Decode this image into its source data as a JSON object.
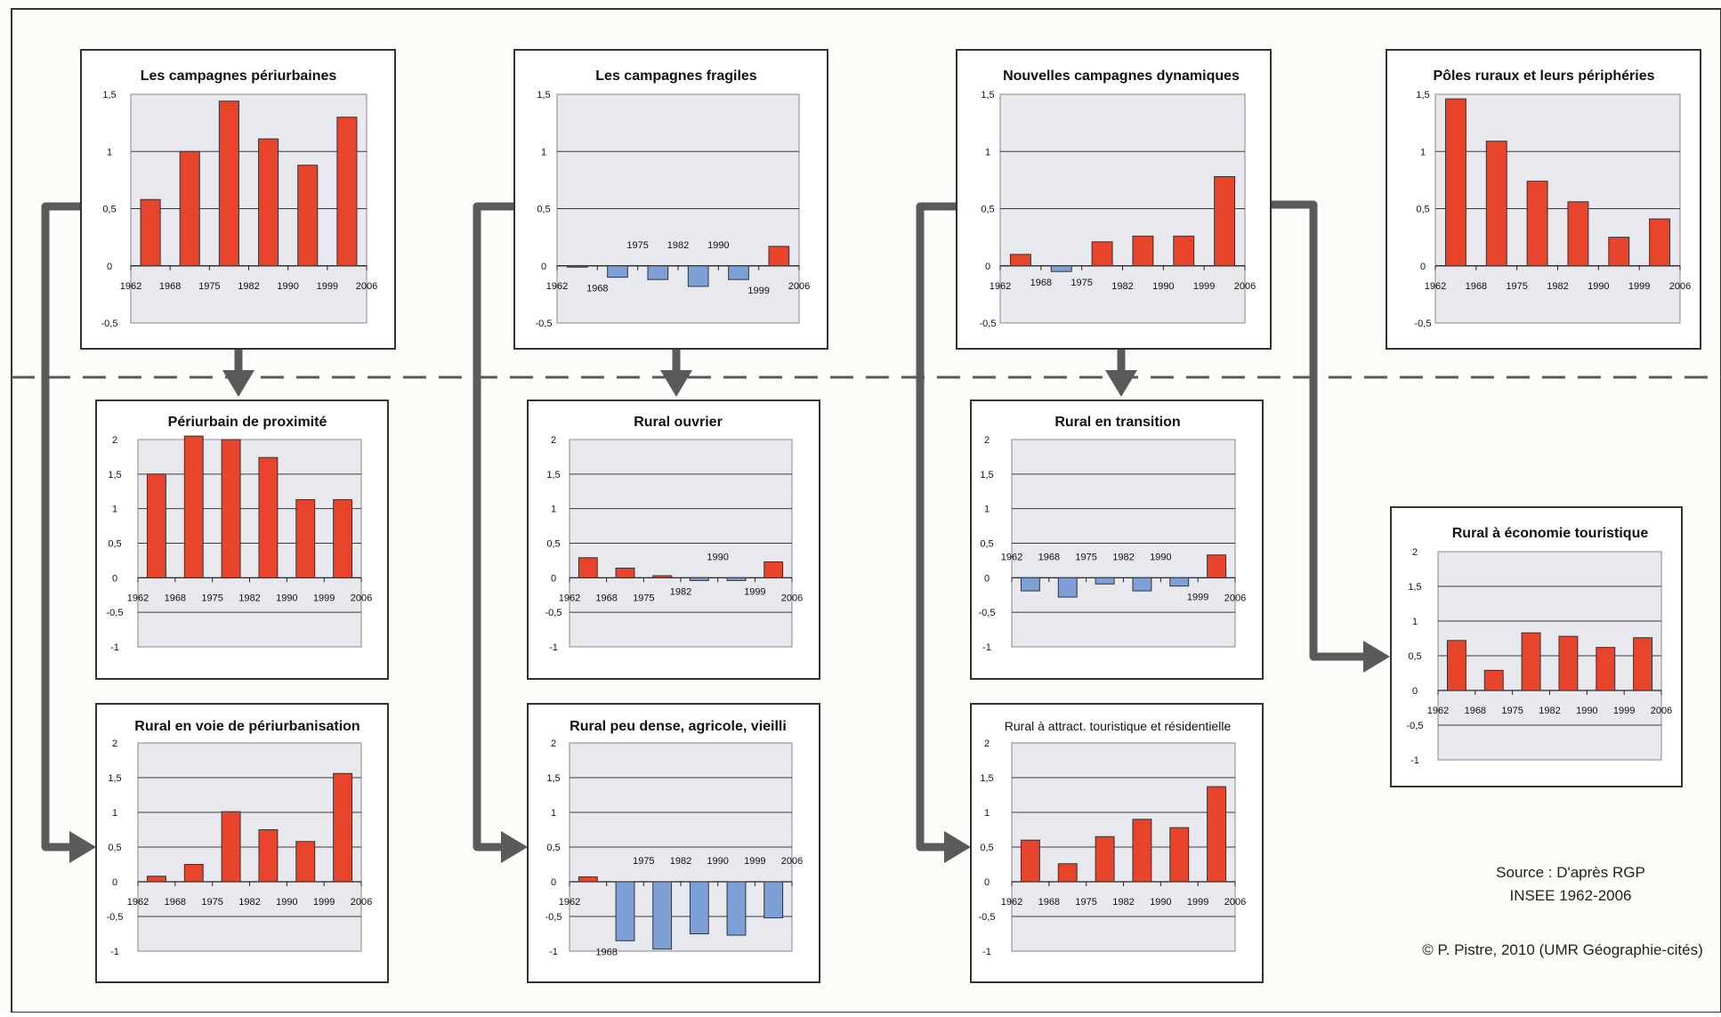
{
  "colors": {
    "positive": "#e8442c",
    "negative": "#7f9fd7",
    "panel_bg": "#e8e9ee",
    "frame": "#333333",
    "arrow": "#5a5a5a"
  },
  "years": [
    "1962",
    "1968",
    "1975",
    "1982",
    "1990",
    "1999",
    "2006"
  ],
  "chart_data": [
    {
      "type": "bar",
      "title": "Les campagnes périurbaines",
      "categories": [
        "1962-1968",
        "1968-1975",
        "1975-1982",
        "1982-1990",
        "1990-1999",
        "1999-2006"
      ],
      "values": [
        0.58,
        1.0,
        1.44,
        1.11,
        0.88,
        1.3
      ],
      "ylim": [
        -0.5,
        1.5
      ],
      "yticks": [
        "1,5",
        "1",
        "0,5",
        "0",
        "-0,5"
      ]
    },
    {
      "type": "bar",
      "title": "Les campagnes fragiles",
      "categories": [
        "1962-1968",
        "1968-1975",
        "1975-1982",
        "1982-1990",
        "1990-1999",
        "1999-2006"
      ],
      "values": [
        0.0,
        -0.1,
        -0.12,
        -0.18,
        -0.12,
        0.17
      ],
      "ylim": [
        -0.5,
        1.5
      ],
      "yticks": [
        "1,5",
        "1",
        "0,5",
        "0",
        "-0,5"
      ]
    },
    {
      "type": "bar",
      "title": "Nouvelles campagnes dynamiques",
      "categories": [
        "1962-1968",
        "1968-1975",
        "1975-1982",
        "1982-1990",
        "1990-1999",
        "1999-2006"
      ],
      "values": [
        0.1,
        -0.05,
        0.21,
        0.26,
        0.26,
        0.78
      ],
      "ylim": [
        -0.5,
        1.5
      ],
      "yticks": [
        "1,5",
        "1",
        "0,5",
        "0",
        "-0,5"
      ]
    },
    {
      "type": "bar",
      "title": "Pôles ruraux et leurs périphéries",
      "categories": [
        "1962-1968",
        "1968-1975",
        "1975-1982",
        "1982-1990",
        "1990-1999",
        "1999-2006"
      ],
      "values": [
        1.46,
        1.09,
        0.74,
        0.56,
        0.25,
        0.41
      ],
      "ylim": [
        -0.5,
        1.5
      ],
      "yticks": [
        "1,5",
        "1",
        "0,5",
        "0",
        "-0,5"
      ]
    },
    {
      "type": "bar",
      "title": "Périurbain de proximité",
      "categories": [
        "1962-1968",
        "1968-1975",
        "1975-1982",
        "1982-1990",
        "1990-1999",
        "1999-2006"
      ],
      "values": [
        1.5,
        2.05,
        2.0,
        1.74,
        1.13,
        1.13
      ],
      "ylim": [
        -1,
        2
      ],
      "yticks": [
        "2",
        "1,5",
        "1",
        "0,5",
        "0",
        "-0,5",
        "-1"
      ]
    },
    {
      "type": "bar",
      "title": "Rural ouvrier",
      "categories": [
        "1962-1968",
        "1968-1975",
        "1975-1982",
        "1982-1990",
        "1990-1999",
        "1999-2006"
      ],
      "values": [
        0.29,
        0.14,
        0.03,
        -0.04,
        -0.04,
        0.23
      ],
      "ylim": [
        -1,
        2
      ],
      "yticks": [
        "2",
        "1,5",
        "1",
        "0,5",
        "0",
        "-0,5",
        "-1"
      ]
    },
    {
      "type": "bar",
      "title": "Rural en transition",
      "categories": [
        "1962-1968",
        "1968-1975",
        "1975-1982",
        "1982-1990",
        "1990-1999",
        "1999-2006"
      ],
      "values": [
        -0.19,
        -0.28,
        -0.09,
        -0.19,
        -0.12,
        0.33
      ],
      "ylim": [
        -1,
        2
      ],
      "yticks": [
        "2",
        "1,5",
        "1",
        "0,5",
        "0",
        "-0,5",
        "-1"
      ]
    },
    {
      "type": "bar",
      "title": "Rural à économie touristique",
      "categories": [
        "1962-1968",
        "1968-1975",
        "1975-1982",
        "1982-1990",
        "1990-1999",
        "1999-2006"
      ],
      "values": [
        0.72,
        0.29,
        0.83,
        0.78,
        0.62,
        0.76
      ],
      "ylim": [
        -1,
        2
      ],
      "yticks": [
        "2",
        "1,5",
        "1",
        "0,5",
        "0",
        "-0,5",
        "-1"
      ]
    },
    {
      "type": "bar",
      "title": "Rural en voie de périurbanisation",
      "categories": [
        "1962-1968",
        "1968-1975",
        "1975-1982",
        "1982-1990",
        "1990-1999",
        "1999-2006"
      ],
      "values": [
        0.08,
        0.25,
        1.01,
        0.75,
        0.58,
        1.56
      ],
      "ylim": [
        -1,
        2
      ],
      "yticks": [
        "2",
        "1,5",
        "1",
        "0,5",
        "0",
        "-0,5",
        "-1"
      ]
    },
    {
      "type": "bar",
      "title": "Rural peu dense, agricole, vieilli",
      "categories": [
        "1962-1968",
        "1968-1975",
        "1975-1982",
        "1982-1990",
        "1990-1999",
        "1999-2006"
      ],
      "values": [
        0.07,
        -0.85,
        -0.97,
        -0.75,
        -0.77,
        -0.52
      ],
      "ylim": [
        -1,
        2
      ],
      "yticks": [
        "2",
        "1,5",
        "1",
        "0,5",
        "0",
        "-0,5",
        "-1"
      ]
    },
    {
      "type": "bar",
      "title": "Rural à attract. touristique et résidentielle",
      "categories": [
        "1962-1968",
        "1968-1975",
        "1975-1982",
        "1982-1990",
        "1990-1999",
        "1999-2006"
      ],
      "values": [
        0.6,
        0.26,
        0.65,
        0.9,
        0.78,
        1.37
      ],
      "ylim": [
        -1,
        2
      ],
      "yticks": [
        "2",
        "1,5",
        "1",
        "0,5",
        "0",
        "-0,5",
        "-1"
      ]
    }
  ],
  "footer": {
    "source_line1": "Source : D'après RGP",
    "source_line2": "INSEE 1962-2006",
    "copyright": "© P. Pistre, 2010 (UMR Géographie-cités)"
  }
}
